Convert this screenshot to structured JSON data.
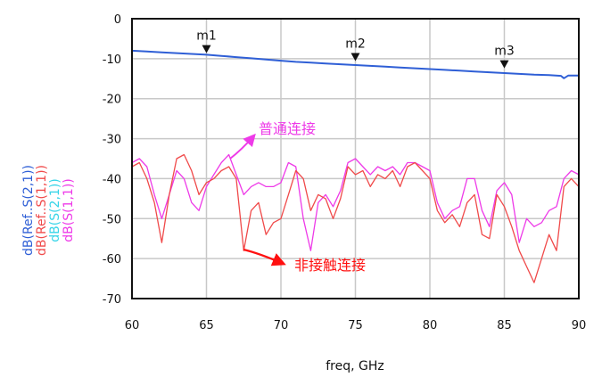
{
  "chart_data": {
    "type": "line",
    "xlabel": "freq, GHz",
    "xlim": [
      60,
      90
    ],
    "ylim": [
      -70,
      0
    ],
    "x_ticks": [
      60,
      65,
      70,
      75,
      80,
      85,
      90
    ],
    "y_ticks": [
      0,
      -10,
      -20,
      -30,
      -40,
      -50,
      -60,
      -70
    ],
    "x_tick_labels": [
      "60",
      "65",
      "70",
      "75",
      "80",
      "85",
      "90"
    ],
    "y_tick_labels": [
      "0",
      "-10",
      "-20",
      "-30",
      "-40",
      "-50",
      "-60",
      "-70"
    ],
    "grid": true,
    "series": [
      {
        "name": "dB(Ref..S(2,1))",
        "color": "#2f5fd6",
        "x": [
          60,
          61,
          62,
          63,
          64,
          65,
          66,
          67,
          68,
          69,
          70,
          71,
          72,
          73,
          74,
          75,
          76,
          77,
          78,
          79,
          80,
          81,
          82,
          83,
          84,
          85,
          86,
          87,
          88,
          88.8,
          89,
          89.3,
          90
        ],
        "y": [
          -8,
          -8.2,
          -8.4,
          -8.6,
          -8.8,
          -9,
          -9.3,
          -9.6,
          -9.9,
          -10.2,
          -10.5,
          -10.8,
          -11,
          -11.2,
          -11.4,
          -11.6,
          -11.8,
          -12,
          -12.2,
          -12.4,
          -12.6,
          -12.8,
          -13,
          -13.2,
          -13.4,
          -13.6,
          -13.8,
          -14,
          -14.1,
          -14.3,
          -14.9,
          -14.2,
          -14.2
        ]
      },
      {
        "name": "dB(Ref..S(1,1))",
        "color": "#f04a4a",
        "x": [
          60,
          60.5,
          61,
          61.5,
          62,
          62.5,
          63,
          63.5,
          64,
          64.5,
          65,
          65.5,
          66,
          66.5,
          67,
          67.5,
          68,
          68.5,
          69,
          69.5,
          70,
          70.5,
          71,
          71.5,
          72,
          72.5,
          73,
          73.5,
          74,
          74.5,
          75,
          75.5,
          76,
          76.5,
          77,
          77.5,
          78,
          78.5,
          79,
          79.5,
          80,
          80.5,
          81,
          81.5,
          82,
          82.5,
          83,
          83.5,
          84,
          84.5,
          85,
          85.5,
          86,
          86.5,
          87,
          87.5,
          88,
          88.5,
          89,
          89.5,
          90
        ],
        "y": [
          -37,
          -36,
          -40,
          -46,
          -56,
          -44,
          -35,
          -34,
          -38,
          -44,
          -41,
          -40,
          -38,
          -37,
          -40,
          -58,
          -48,
          -46,
          -54,
          -51,
          -50,
          -44,
          -38,
          -40,
          -48,
          -44,
          -45,
          -50,
          -45,
          -37,
          -39,
          -38,
          -42,
          -39,
          -40,
          -38,
          -42,
          -37,
          -36,
          -38,
          -40,
          -48,
          -51,
          -49,
          -52,
          -46,
          -44,
          -54,
          -55,
          -44,
          -47,
          -52,
          -58,
          -62,
          -66,
          -60,
          -54,
          -58,
          -42,
          -40,
          -42
        ]
      },
      {
        "name": "dB(S(1,1))",
        "color": "#ee3ae8",
        "x": [
          60,
          60.5,
          61,
          61.5,
          62,
          62.5,
          63,
          63.5,
          64,
          64.5,
          65,
          65.5,
          66,
          66.5,
          67,
          67.5,
          68,
          68.5,
          69,
          69.5,
          70,
          70.5,
          71,
          71.5,
          72,
          72.5,
          73,
          73.5,
          74,
          74.5,
          75,
          75.5,
          76,
          76.5,
          77,
          77.5,
          78,
          78.5,
          79,
          79.5,
          80,
          80.5,
          81,
          81.5,
          82,
          82.5,
          83,
          83.5,
          84,
          84.5,
          85,
          85.5,
          86,
          86.5,
          87,
          87.5,
          88,
          88.5,
          89,
          89.5,
          90
        ],
        "y": [
          -36,
          -35,
          -37,
          -44,
          -50,
          -44,
          -38,
          -40,
          -46,
          -48,
          -42,
          -39,
          -36,
          -34,
          -39,
          -44,
          -42,
          -41,
          -42,
          -42,
          -41,
          -36,
          -37,
          -50,
          -58,
          -46,
          -44,
          -47,
          -43,
          -36,
          -35,
          -37,
          -39,
          -37,
          -38,
          -37,
          -39,
          -36,
          -36,
          -37,
          -38,
          -46,
          -50,
          -48,
          -47,
          -40,
          -40,
          -48,
          -52,
          -43,
          -41,
          -44,
          -56,
          -50,
          -52,
          -51,
          -48,
          -47,
          -40,
          -38,
          -39
        ]
      }
    ],
    "y_legend": [
      "dB(Ref..S(2,1))",
      "dB(Ref..S(1,1))",
      "dB(S(2,1))",
      "dB(S(1,1))"
    ],
    "markers": [
      {
        "label": "m1",
        "x": 65,
        "y": -8.6
      },
      {
        "label": "m2",
        "x": 75,
        "y": -10.6
      },
      {
        "label": "m3",
        "x": 85,
        "y": -12.4
      }
    ],
    "annotations": [
      {
        "text": "普通连接",
        "color": "#ee3ae8"
      },
      {
        "text": "非接触连接",
        "color": "#ff1010"
      }
    ]
  },
  "colors": {
    "legend": [
      "#2f5fd6",
      "#f04a4a",
      "#36d4e8",
      "#ee3ae8"
    ],
    "arrow_pink": "#ee3ae8",
    "arrow_red": "#ff1010"
  }
}
